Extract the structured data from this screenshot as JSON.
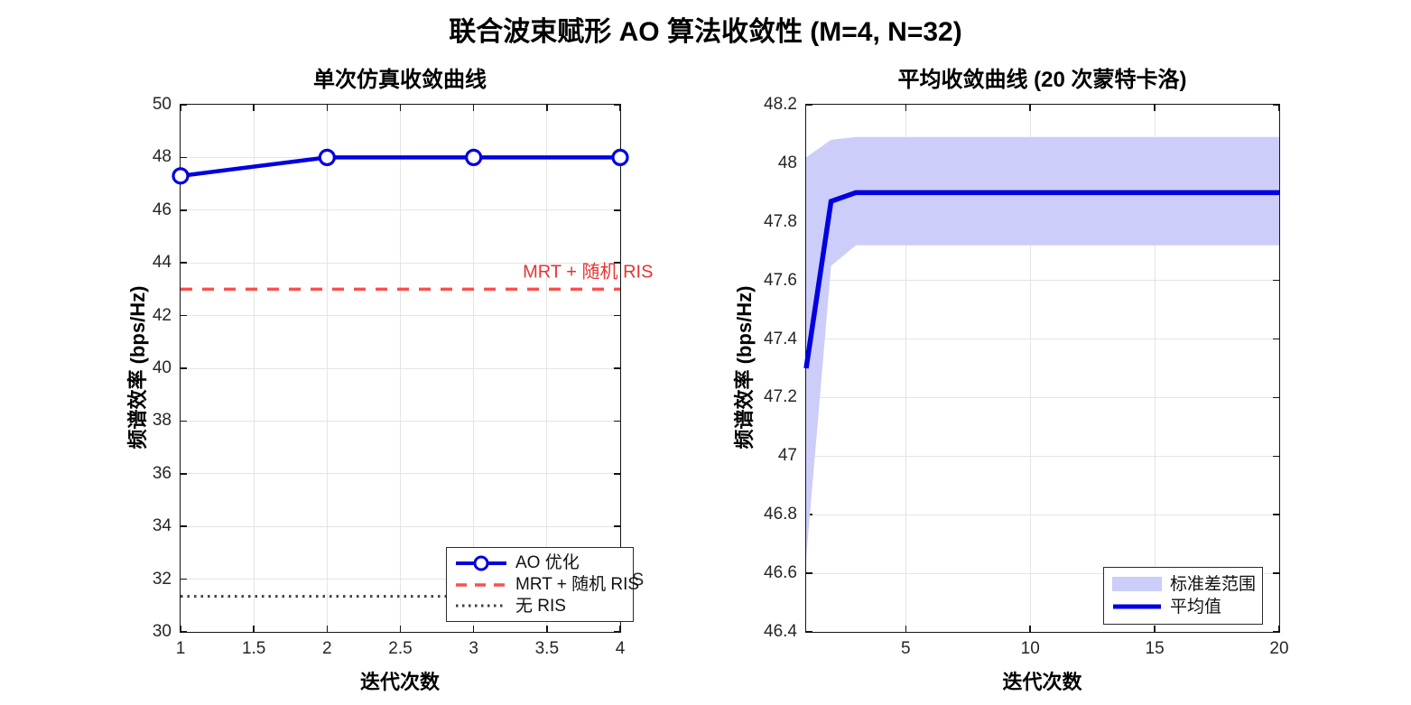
{
  "figure": {
    "suptitle": "联合波束赋形 AO 算法收敛性 (M=4, N=32)",
    "colors": {
      "blue": "#0000E0",
      "red_line": "#F85050",
      "red_text": "#E53434",
      "dark": "#3F3F3F",
      "band": "#CDCDF9",
      "grid": "#E4E4E4",
      "axis": "#141414",
      "tick": "#262626"
    }
  },
  "chart_data": [
    {
      "type": "line",
      "title": "单次仿真收敛曲线",
      "xlabel": "迭代次数",
      "ylabel": "频谱效率 (bps/Hz)",
      "xlim": [
        1,
        4
      ],
      "ylim": [
        30,
        50
      ],
      "grid": true,
      "xticks": [
        1,
        1.5,
        2,
        2.5,
        3,
        3.5,
        4
      ],
      "xtick_labels": [
        "1",
        "1.5",
        "2",
        "2.5",
        "3",
        "3.5",
        "4"
      ],
      "yticks": [
        30,
        32,
        34,
        36,
        38,
        40,
        42,
        44,
        46,
        48,
        50
      ],
      "ytick_labels": [
        "30",
        "32",
        "34",
        "36",
        "38",
        "40",
        "42",
        "44",
        "46",
        "48",
        "50"
      ],
      "series": [
        {
          "name": "AO 优化",
          "x": [
            1,
            2,
            3,
            4
          ],
          "y": [
            47.3,
            48.0,
            48.0,
            48.0
          ],
          "color": "#0000E0",
          "style": "solid",
          "width": 4.5,
          "marker": "circle"
        },
        {
          "name": "MRT + 随机 RIS",
          "x": [
            1,
            4
          ],
          "y": [
            43.0,
            43.0
          ],
          "color": "#F85050",
          "style": "dashed",
          "width": 3.5,
          "marker": "none"
        },
        {
          "name": "无 RIS",
          "x": [
            1,
            4
          ],
          "y": [
            31.35,
            31.35
          ],
          "color": "#3F3F3F",
          "style": "dotted",
          "width": 3,
          "marker": "none"
        }
      ],
      "annotations": [
        {
          "text": "MRT + 随机 RIS",
          "x": 3.78,
          "y": 43.75,
          "color": "#E53434"
        },
        {
          "text": "无 RIS",
          "x": 3.98,
          "y": 32.05,
          "color": "#2B2B2B"
        }
      ],
      "legend": {
        "position": "bottom-right-inside",
        "entries": [
          "AO 优化",
          "MRT + 随机 RIS",
          "无 RIS"
        ]
      }
    },
    {
      "type": "line-with-band",
      "title": "平均收敛曲线 (20 次蒙特卡洛)",
      "xlabel": "迭代次数",
      "ylabel": "频谱效率 (bps/Hz)",
      "xlim": [
        1,
        20
      ],
      "ylim": [
        46.4,
        48.2
      ],
      "grid": true,
      "xticks": [
        5,
        10,
        15,
        20
      ],
      "xtick_labels": [
        "5",
        "10",
        "15",
        "20"
      ],
      "yticks": [
        46.4,
        46.6,
        46.8,
        47,
        47.2,
        47.4,
        47.6,
        47.8,
        48,
        48.2
      ],
      "ytick_labels": [
        "46.4",
        "46.6",
        "46.8",
        "47",
        "47.2",
        "47.4",
        "47.6",
        "47.8",
        "48",
        "48.2"
      ],
      "band": {
        "label": "标准差范围",
        "color": "#CDCDF9",
        "x": [
          1,
          2,
          3,
          4,
          5,
          6,
          7,
          8,
          9,
          10,
          11,
          12,
          13,
          14,
          15,
          16,
          17,
          18,
          19,
          20
        ],
        "upper": [
          48.02,
          48.08,
          48.09,
          48.09,
          48.09,
          48.09,
          48.09,
          48.09,
          48.09,
          48.09,
          48.09,
          48.09,
          48.09,
          48.09,
          48.09,
          48.09,
          48.09,
          48.09,
          48.09,
          48.09
        ],
        "lower": [
          46.65,
          47.65,
          47.72,
          47.72,
          47.72,
          47.72,
          47.72,
          47.72,
          47.72,
          47.72,
          47.72,
          47.72,
          47.72,
          47.72,
          47.72,
          47.72,
          47.72,
          47.72,
          47.72,
          47.72
        ]
      },
      "series": [
        {
          "name": "平均值",
          "x": [
            1,
            2,
            3,
            4,
            5,
            6,
            7,
            8,
            9,
            10,
            11,
            12,
            13,
            14,
            15,
            16,
            17,
            18,
            19,
            20
          ],
          "y": [
            47.3,
            47.87,
            47.9,
            47.9,
            47.9,
            47.9,
            47.9,
            47.9,
            47.9,
            47.9,
            47.9,
            47.9,
            47.9,
            47.9,
            47.9,
            47.9,
            47.9,
            47.9,
            47.9,
            47.9
          ],
          "color": "#0000E0",
          "style": "solid",
          "width": 5.5,
          "marker": "none"
        }
      ],
      "annotations": [],
      "legend": {
        "position": "bottom-right-inside",
        "entries": [
          "标准差范围",
          "平均值"
        ]
      }
    }
  ]
}
